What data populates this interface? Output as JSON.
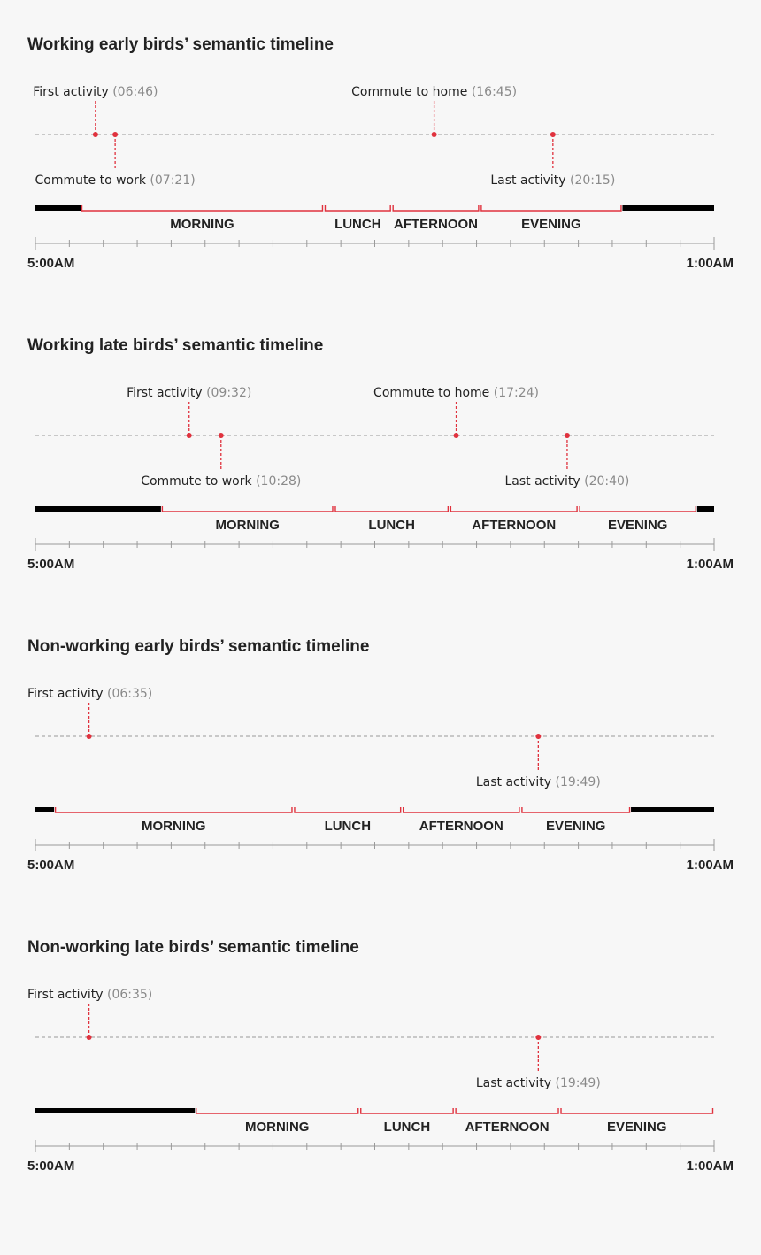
{
  "colors": {
    "accent": "#e0323e",
    "dark": "#000000",
    "text": "#222222",
    "muted": "#8a8a8a",
    "axis": "#9a9a9a",
    "background": "#f7f7f7"
  },
  "axis": {
    "start_label": "5:00AM",
    "end_label": "1:00AM",
    "start_hour": 5,
    "end_hour": 25,
    "tick_every_hours": 1
  },
  "panels": [
    {
      "title": "Working early birds’ semantic timeline",
      "dark_before": [
        5,
        6.33
      ],
      "dark_after": [
        22.3,
        25
      ],
      "segments": [
        {
          "label": "MORNING",
          "start": 6.33,
          "end": 13.5
        },
        {
          "label": "LUNCH",
          "start": 13.5,
          "end": 15.5
        },
        {
          "label": "AFTERNOON",
          "start": 15.5,
          "end": 18.1
        },
        {
          "label": "EVENING",
          "start": 18.1,
          "end": 22.3
        }
      ],
      "annotations": [
        {
          "label": "First activity",
          "time": "(06:46)",
          "hour": 6.77,
          "side": "above"
        },
        {
          "label": "Commute to work",
          "time": "(07:21)",
          "hour": 7.35,
          "side": "below"
        },
        {
          "label": "Commute to home",
          "time": "(16:45)",
          "hour": 16.75,
          "side": "above"
        },
        {
          "label": "Last activity",
          "time": "(20:15)",
          "hour": 20.25,
          "side": "below"
        }
      ]
    },
    {
      "title": "Working late birds’ semantic timeline",
      "dark_before": [
        5,
        8.7
      ],
      "dark_after": [
        24.5,
        25
      ],
      "segments": [
        {
          "label": "MORNING",
          "start": 8.7,
          "end": 13.8
        },
        {
          "label": "LUNCH",
          "start": 13.8,
          "end": 17.2
        },
        {
          "label": "AFTERNOON",
          "start": 17.2,
          "end": 21.0
        },
        {
          "label": "EVENING",
          "start": 21.0,
          "end": 24.5
        }
      ],
      "annotations": [
        {
          "label": "First activity",
          "time": "(09:32)",
          "hour": 9.53,
          "side": "above"
        },
        {
          "label": "Commute to work",
          "time": "(10:28)",
          "hour": 10.47,
          "side": "below"
        },
        {
          "label": "Commute to home",
          "time": "(17:24)",
          "hour": 17.4,
          "side": "above"
        },
        {
          "label": "Last activity",
          "time": "(20:40)",
          "hour": 20.67,
          "side": "below"
        }
      ]
    },
    {
      "title": "Non-working early birds’ semantic timeline",
      "dark_before": [
        5,
        5.55
      ],
      "dark_after": [
        22.55,
        25
      ],
      "segments": [
        {
          "label": "MORNING",
          "start": 5.55,
          "end": 12.6
        },
        {
          "label": "LUNCH",
          "start": 12.6,
          "end": 15.8
        },
        {
          "label": "AFTERNOON",
          "start": 15.8,
          "end": 19.3
        },
        {
          "label": "EVENING",
          "start": 19.3,
          "end": 22.55
        }
      ],
      "annotations": [
        {
          "label": "First activity",
          "time": "(06:35)",
          "hour": 6.58,
          "side": "above"
        },
        {
          "label": "Last activity",
          "time": "(19:49)",
          "hour": 19.82,
          "side": "below"
        }
      ]
    },
    {
      "title": "Non-working late birds’ semantic timeline",
      "dark_before": [
        5,
        9.7
      ],
      "dark_after": null,
      "segments": [
        {
          "label": "MORNING",
          "start": 9.7,
          "end": 14.55
        },
        {
          "label": "LUNCH",
          "start": 14.55,
          "end": 17.35
        },
        {
          "label": "AFTERNOON",
          "start": 17.35,
          "end": 20.45
        },
        {
          "label": "EVENING",
          "start": 20.45,
          "end": 25
        }
      ],
      "annotations": [
        {
          "label": "First activity",
          "time": "(06:35)",
          "hour": 6.58,
          "side": "above"
        },
        {
          "label": "Last activity",
          "time": "(19:49)",
          "hour": 19.82,
          "side": "below"
        }
      ]
    }
  ]
}
